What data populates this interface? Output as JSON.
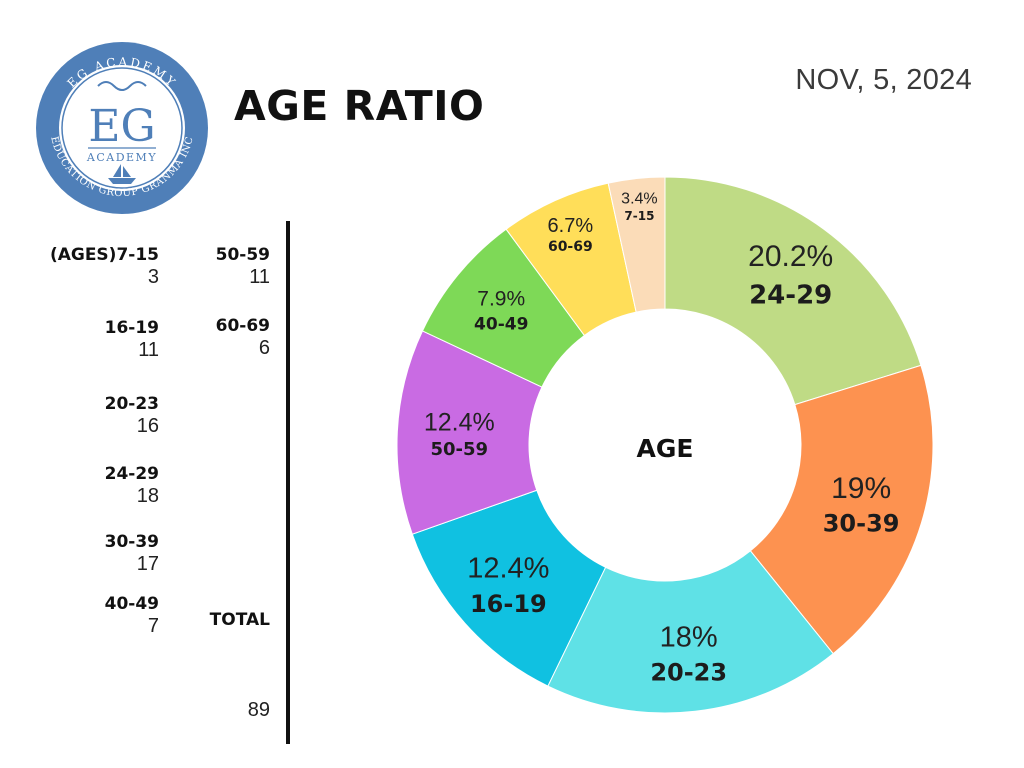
{
  "logo": {
    "arc_top": "EG ACADEMY",
    "arc_bottom": "EDUCATION GROUP GRANMA INC",
    "initials": "EG",
    "word": "ACADEMY",
    "ring_color": "#4f7fb8"
  },
  "header": {
    "title": "AGE RATIO",
    "date": "NOV, 5, 2024"
  },
  "table": {
    "total_label": "TOTAL",
    "total_value": "89",
    "rows": [
      {
        "label": "(AGES)7-15",
        "value": "3"
      },
      {
        "label": "16-19",
        "value": "11"
      },
      {
        "label": "20-23",
        "value": "16"
      },
      {
        "label": "24-29",
        "value": "18"
      },
      {
        "label": "30-39",
        "value": "17"
      },
      {
        "label": "40-49",
        "value": "7"
      },
      {
        "label": "50-59",
        "value": "11"
      },
      {
        "label": "60-69",
        "value": "6"
      }
    ]
  },
  "chart_data": {
    "type": "pie",
    "center_label": "AGE",
    "start_angle_deg": 0,
    "direction": "clockwise",
    "slices": [
      {
        "label": "24-29",
        "value": 20.2,
        "display": "20.2%",
        "color": "#bfdb85"
      },
      {
        "label": "30-39",
        "value": 19,
        "display": "19%",
        "color": "#fd9250"
      },
      {
        "label": "20-23",
        "value": 18,
        "display": "18%",
        "color": "#5fe1e6"
      },
      {
        "label": "16-19",
        "value": 12.4,
        "display": "12.4%",
        "color": "#10c1e1"
      },
      {
        "label": "50-59",
        "value": 12.4,
        "display": "12.4%",
        "color": "#c96be3"
      },
      {
        "label": "40-49",
        "value": 7.9,
        "display": "7.9%",
        "color": "#7ed957"
      },
      {
        "label": "60-69",
        "value": 6.7,
        "display": "6.7%",
        "color": "#ffde59"
      },
      {
        "label": "7-15",
        "value": 3.4,
        "display": "3.4%",
        "color": "#fbdcb8"
      }
    ]
  }
}
